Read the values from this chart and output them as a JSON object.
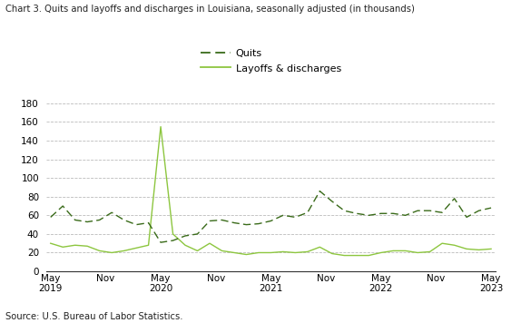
{
  "title": "Chart 3. Quits and layoffs and discharges in Louisiana, seasonally adjusted (in thousands)",
  "source": "Source: U.S. Bureau of Labor Statistics.",
  "legend_quits": "Quits",
  "legend_layoffs": "Layoffs & discharges",
  "quits_color": "#3a6b1a",
  "layoffs_color": "#8dc63f",
  "ylim": [
    0,
    180
  ],
  "yticks": [
    0,
    20,
    40,
    60,
    80,
    100,
    120,
    140,
    160,
    180
  ],
  "xtick_pos": [
    0,
    6,
    12,
    18,
    24,
    30,
    36,
    42,
    48
  ],
  "xtick_labels": [
    "May\n2019",
    "Nov",
    "May\n2020",
    "Nov",
    "May\n2021",
    "Nov",
    "May\n2022",
    "Nov",
    "May\n2023"
  ],
  "quits": [
    58,
    70,
    55,
    53,
    55,
    63,
    55,
    50,
    52,
    31,
    33,
    38,
    40,
    54,
    55,
    52,
    50,
    51,
    54,
    60,
    58,
    63,
    86,
    75,
    65,
    62,
    60,
    62,
    62,
    60,
    65,
    65,
    63,
    78,
    58,
    65,
    68
  ],
  "layoffs": [
    30,
    26,
    28,
    27,
    22,
    20,
    22,
    25,
    28,
    155,
    40,
    28,
    22,
    30,
    22,
    20,
    18,
    20,
    20,
    21,
    20,
    21,
    26,
    19,
    17,
    17,
    17,
    20,
    22,
    22,
    20,
    21,
    30,
    28,
    24,
    23,
    24
  ]
}
